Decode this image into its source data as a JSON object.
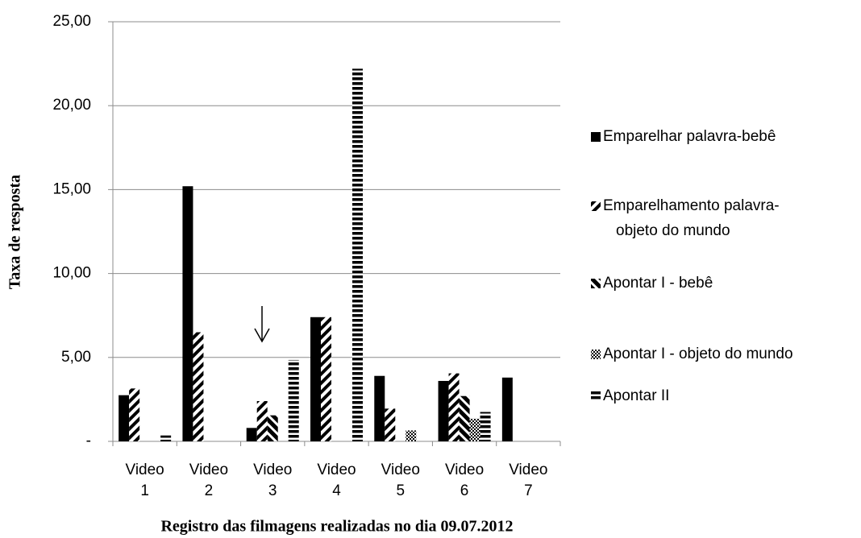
{
  "chart_data": {
    "type": "bar",
    "y_label": "Taxa de resposta",
    "x_label": "Registro das filmagens realizadas no dia 09.07.2012",
    "categories": [
      "Video 1",
      "Video 2",
      "Video 3",
      "Video 4",
      "Video 5",
      "Video 6",
      "Video 7"
    ],
    "series": [
      {
        "name": "Emparelhar palavra-bebê",
        "color": "#000000",
        "values": [
          2.75,
          15.2,
          0.8,
          7.4,
          3.9,
          3.6,
          3.8
        ]
      },
      {
        "name": "Emparelhamento palavra-objeto do mundo",
        "color": "#000000",
        "values": [
          3.15,
          6.5,
          2.4,
          7.4,
          1.95,
          4.05,
          0
        ]
      },
      {
        "name": "Apontar I - bebê",
        "color": "#000000",
        "values": [
          0,
          0,
          1.55,
          0,
          0,
          2.7,
          0
        ]
      },
      {
        "name": "Apontar I - objeto do mundo",
        "color": "#000000",
        "values": [
          0,
          0,
          0,
          0,
          0.65,
          1.35,
          0
        ]
      },
      {
        "name": "Apontar II",
        "color": "#000000",
        "values": [
          0.35,
          0,
          4.85,
          22.2,
          0,
          1.75,
          0
        ]
      }
    ],
    "ylim": [
      0,
      25
    ],
    "yticks": [
      {
        "value": 0,
        "label": "-"
      },
      {
        "value": 5,
        "label": "5,00"
      },
      {
        "value": 10,
        "label": "10,00"
      },
      {
        "value": 15,
        "label": "15,00"
      },
      {
        "value": 20,
        "label": "20,00"
      },
      {
        "value": 25,
        "label": "25,00"
      }
    ],
    "grid": true,
    "legend": "right"
  }
}
